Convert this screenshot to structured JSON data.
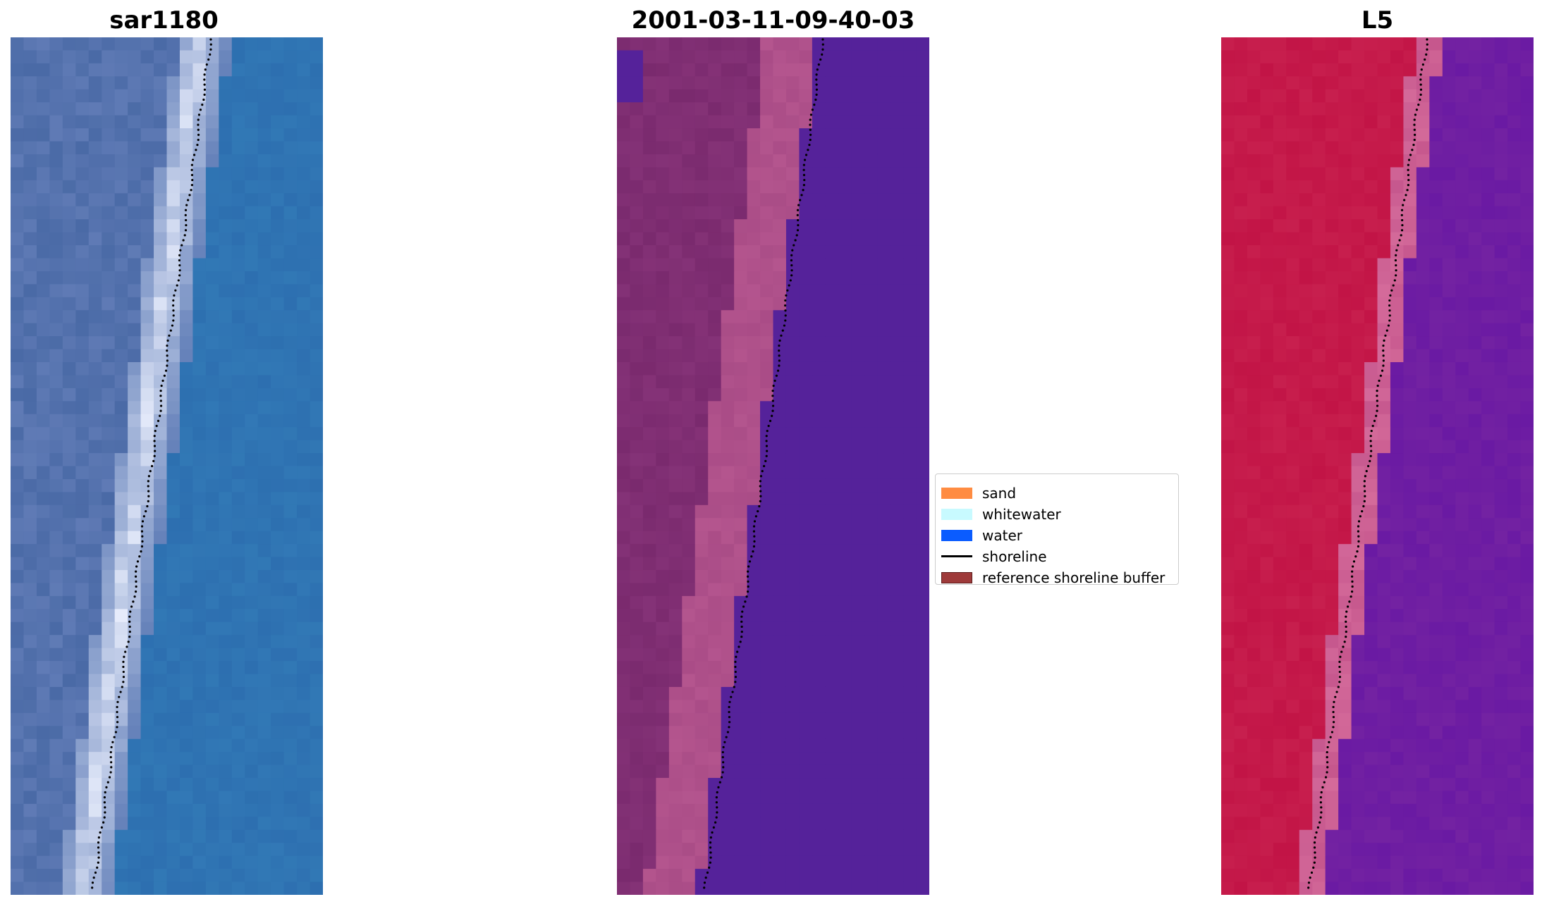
{
  "titles": {
    "left": "sar1180",
    "middle": "2001-03-11-09-40-03",
    "right": "L5"
  },
  "legend": {
    "items": [
      {
        "label": "sand",
        "kind": "patch",
        "color": "#ff8c42"
      },
      {
        "label": "whitewater",
        "kind": "patch",
        "color": "#c8faff"
      },
      {
        "label": "water",
        "kind": "patch",
        "color": "#0a5cff"
      },
      {
        "label": "shoreline",
        "kind": "line",
        "color": "#000000"
      },
      {
        "label": "reference shoreline buffer",
        "kind": "patch",
        "color": "#9e3a3a"
      }
    ]
  },
  "colors": {
    "sar_water": "#2d6fb0",
    "sar_land": "#4a6aa6",
    "sar_foam": "#eef2ff",
    "class_water": "#55229a",
    "class_land": "#7a2a6e",
    "class_beach": "#b4558e",
    "l5_water": "#6a1aa3",
    "l5_land": "#c21446",
    "l5_edge": "#d46a9a",
    "shoreline": "#000000"
  }
}
